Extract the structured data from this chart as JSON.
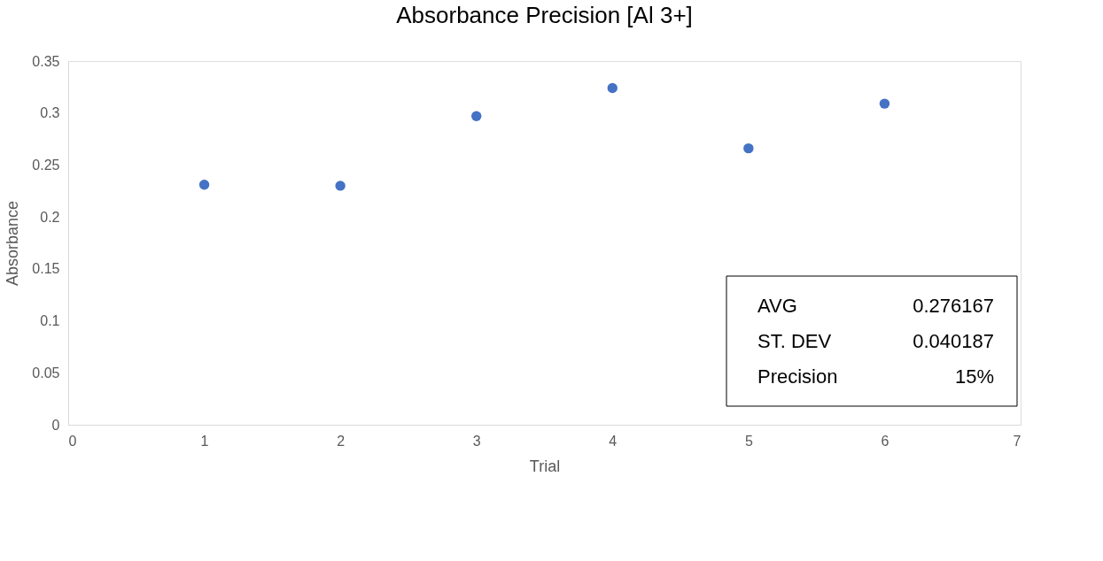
{
  "chart_data": {
    "type": "scatter",
    "title": "Absorbance Precision [Al 3+]",
    "xlabel": "Trial",
    "ylabel": "Absorbance",
    "x": [
      1,
      2,
      3,
      4,
      5,
      6
    ],
    "series": [
      {
        "color": "#4472c4",
        "values": [
          0.231,
          0.23,
          0.297,
          0.324,
          0.266,
          0.309
        ]
      }
    ],
    "xlim": [
      0,
      7
    ],
    "xticks": [
      0,
      1,
      2,
      3,
      4,
      5,
      6,
      7
    ],
    "ylim": [
      0,
      0.35
    ],
    "yticks": [
      0,
      0.05,
      0.1,
      0.15,
      0.2,
      0.25,
      0.3,
      0.35
    ],
    "grid": false,
    "marker": "circle",
    "annotations": [
      "AVG",
      "0.276167",
      "ST. DEV",
      "0.040187",
      "Precision",
      "15%"
    ]
  }
}
